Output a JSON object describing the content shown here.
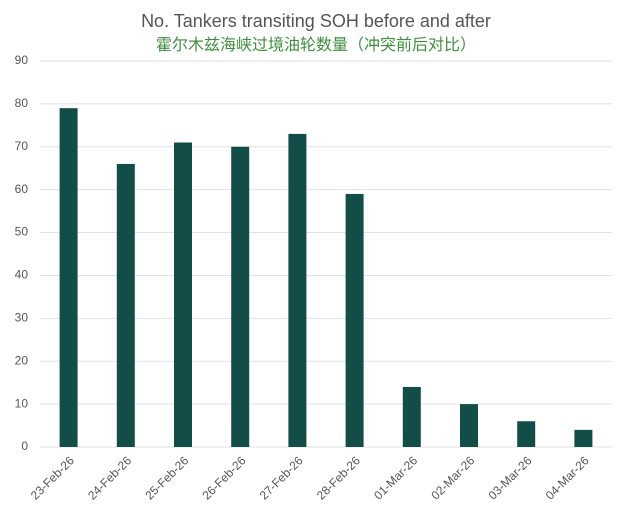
{
  "chart_data": {
    "type": "bar",
    "title": "No. Tankers transiting SOH before and after",
    "subtitle": "霍尔木兹海峡过境油轮数量（冲突前后对比）",
    "categories": [
      "23-Feb-26",
      "24-Feb-26",
      "25-Feb-26",
      "26-Feb-26",
      "27-Feb-26",
      "28-Feb-26",
      "01-Mar-26",
      "02-Mar-26",
      "03-Mar-26",
      "04-Mar-26"
    ],
    "values": [
      79,
      66,
      71,
      70,
      73,
      59,
      14,
      10,
      6,
      4
    ],
    "color": "#124e47",
    "ylim": [
      0,
      90
    ],
    "yticks": [
      0,
      10,
      20,
      30,
      40,
      50,
      60,
      70,
      80,
      90
    ],
    "grid": true
  }
}
